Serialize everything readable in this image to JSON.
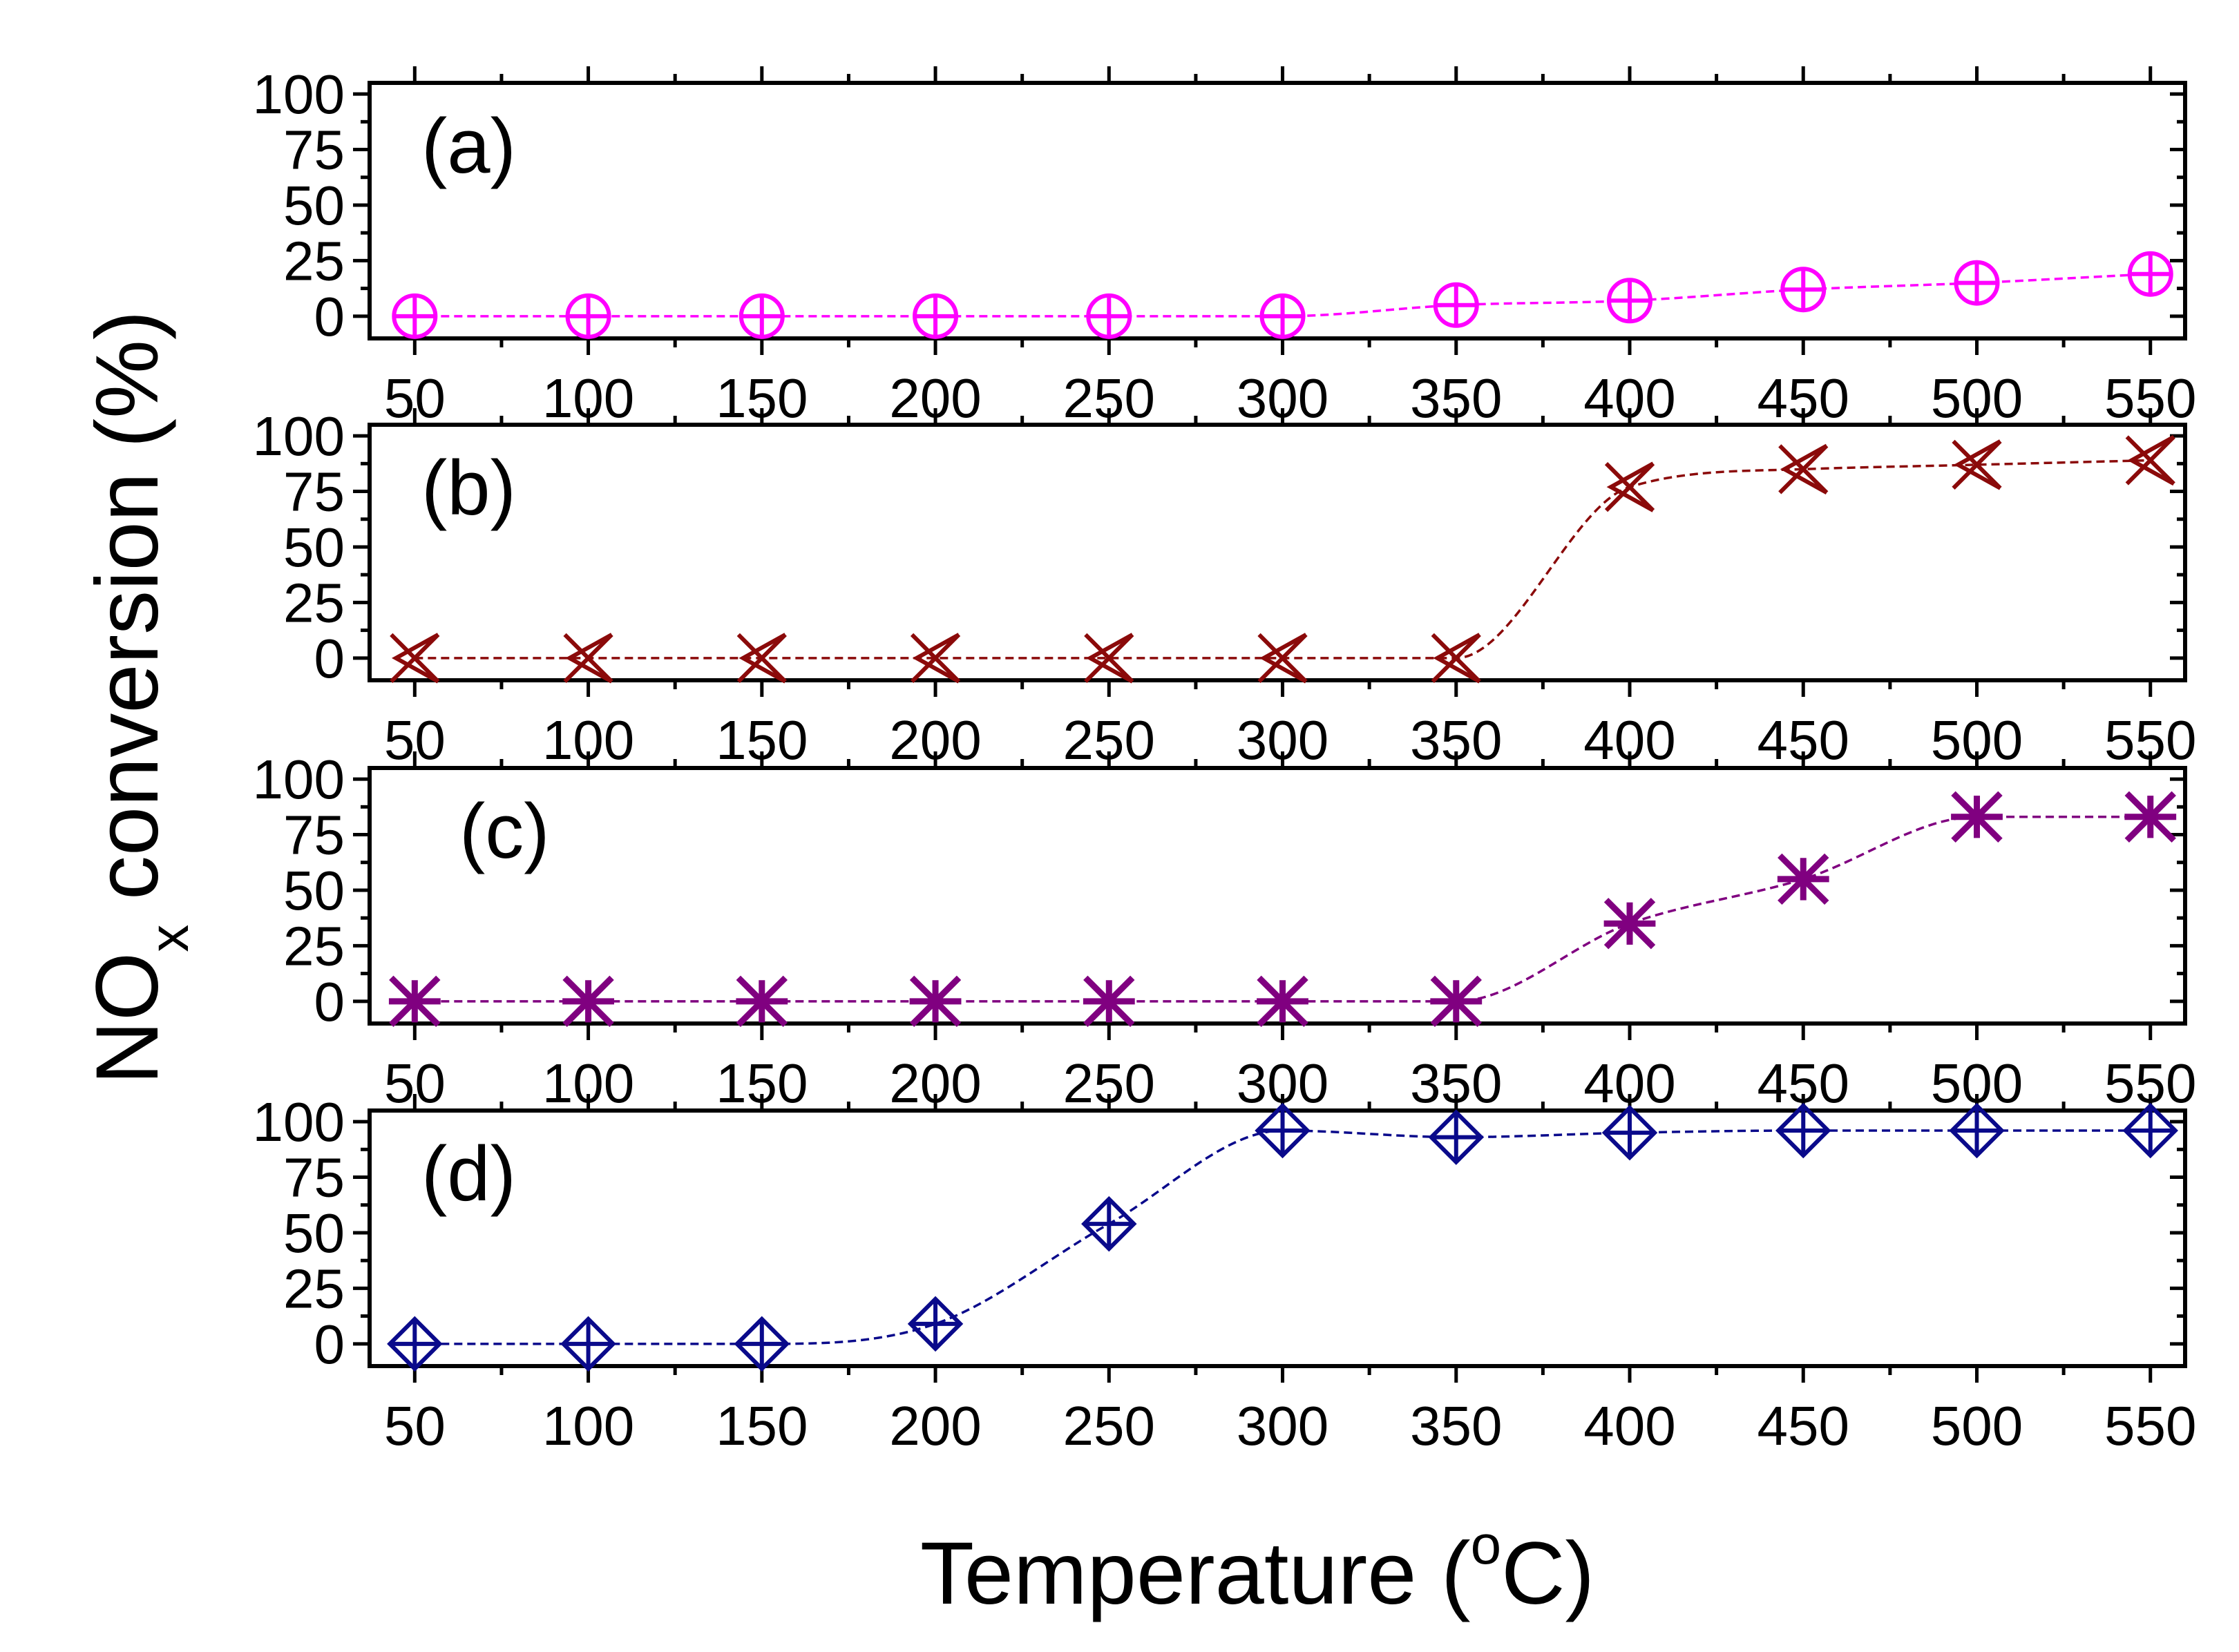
{
  "figure": {
    "xlabel_main": "Temperature (",
    "xlabel_sup": "o",
    "xlabel_unit": "C)",
    "ylabel_main": "NO",
    "ylabel_sub": "x",
    "ylabel_rest": " conversion (%)"
  },
  "chart_data": [
    {
      "type": "line",
      "panel_label": "(a)",
      "marker": "circle-plus",
      "color": "#ff00ff",
      "x": [
        50,
        100,
        150,
        200,
        250,
        300,
        350,
        400,
        450,
        500,
        550
      ],
      "values": [
        0,
        0,
        0,
        0,
        0,
        0,
        5,
        7,
        12,
        15,
        19
      ],
      "xlim": [
        37,
        560
      ],
      "ylim": [
        -10,
        105
      ],
      "xticks": [
        50,
        100,
        150,
        200,
        250,
        300,
        350,
        400,
        450,
        500,
        550
      ],
      "yticks": [
        0,
        25,
        50,
        75,
        100
      ],
      "line_style": "dashed"
    },
    {
      "type": "line",
      "panel_label": "(b)",
      "marker": "x-triangle",
      "color": "#8b0a0a",
      "x": [
        50,
        100,
        150,
        200,
        250,
        300,
        350,
        400,
        450,
        500,
        550
      ],
      "values": [
        0,
        0,
        0,
        0,
        0,
        0,
        0,
        77,
        85,
        87,
        89
      ],
      "xlim": [
        37,
        560
      ],
      "ylim": [
        -10,
        105
      ],
      "xticks": [
        50,
        100,
        150,
        200,
        250,
        300,
        350,
        400,
        450,
        500,
        550
      ],
      "yticks": [
        0,
        25,
        50,
        75,
        100
      ],
      "line_style": "dashed"
    },
    {
      "type": "line",
      "panel_label": "(c)",
      "marker": "asterisk",
      "color": "#800080",
      "x": [
        50,
        100,
        150,
        200,
        250,
        300,
        350,
        400,
        450,
        500,
        550
      ],
      "values": [
        0,
        0,
        0,
        0,
        0,
        0,
        0,
        35,
        55,
        83,
        83
      ],
      "xlim": [
        37,
        560
      ],
      "ylim": [
        -10,
        105
      ],
      "xticks": [
        50,
        100,
        150,
        200,
        250,
        300,
        350,
        400,
        450,
        500,
        550
      ],
      "yticks": [
        0,
        25,
        50,
        75,
        100
      ],
      "line_style": "dashed"
    },
    {
      "type": "line",
      "panel_label": "(d)",
      "marker": "diamond-plus",
      "color": "#0a0a8b",
      "x": [
        50,
        100,
        150,
        200,
        250,
        300,
        350,
        400,
        450,
        500,
        550
      ],
      "values": [
        0,
        0,
        0,
        9,
        54,
        96,
        93,
        95,
        96,
        96,
        96
      ],
      "xlim": [
        37,
        560
      ],
      "ylim": [
        -10,
        105
      ],
      "xticks": [
        50,
        100,
        150,
        200,
        250,
        300,
        350,
        400,
        450,
        500,
        550
      ],
      "yticks": [
        0,
        25,
        50,
        75,
        100
      ],
      "line_style": "dashed"
    }
  ]
}
